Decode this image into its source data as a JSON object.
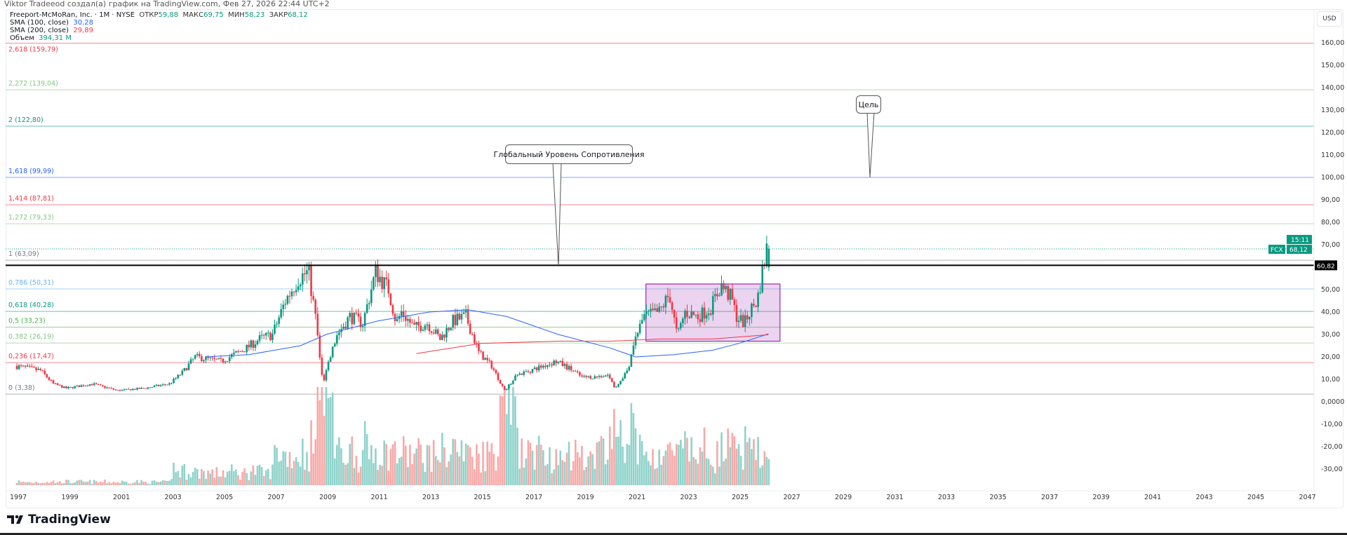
{
  "attribution": "Viktor Tradeeod создал(а) график на TradingView.com, Фев 27, 2026 22:44 UTC+2",
  "legend": {
    "symbol": "Freeport-McMoRan, Inc. · 1M · NYSE",
    "open_label": "ОТКР",
    "open": "59,88",
    "high_label": "МАКС",
    "high": "69,75",
    "low_label": "МИН",
    "low": "58,23",
    "close_label": "ЗАКР",
    "close": "68,12",
    "sma100_label": "SMA (100, close)",
    "sma100": "30,28",
    "sma200_label": "SMA (200, close)",
    "sma200": "29,89",
    "volume_label": "Объем",
    "volume": "394,31 M"
  },
  "currency": "USD",
  "logo_text": "TradingView",
  "callouts": {
    "resistance": "Глобальный Уровень Сопротивления",
    "target": "Цель"
  },
  "price_tag": {
    "ticker": "FCX",
    "price": "68,12",
    "countdown": "15:11",
    "level": "60,82"
  },
  "colors": {
    "up": "#089981",
    "down": "#f23645",
    "up_vol": "#8fd3cb",
    "down_vol": "#f7a9a7",
    "sma100": "#2962ff",
    "sma200": "#f23645",
    "box": "#9c27b0"
  },
  "chart_data": {
    "type": "candlestick",
    "title": "Freeport-McMoRan, Inc. · 1M · NYSE",
    "x_ticks": [
      "1997",
      "1999",
      "2001",
      "2003",
      "2005",
      "2007",
      "2009",
      "2011",
      "2013",
      "2015",
      "2017",
      "2019",
      "2021",
      "2023",
      "2025",
      "2027",
      "2029",
      "2031",
      "2033",
      "2035",
      "2037",
      "2039",
      "2041",
      "2043",
      "2045",
      "2047"
    ],
    "y_ticks": [
      {
        "v": 160,
        "label": "160,00"
      },
      {
        "v": 150,
        "label": "150,00"
      },
      {
        "v": 140,
        "label": "140,00"
      },
      {
        "v": 130,
        "label": "130,00"
      },
      {
        "v": 120,
        "label": "120,00"
      },
      {
        "v": 110,
        "label": "110,00"
      },
      {
        "v": 100,
        "label": "100,00"
      },
      {
        "v": 90,
        "label": "90,00"
      },
      {
        "v": 80,
        "label": "80,00"
      },
      {
        "v": 70,
        "label": "70,00"
      },
      {
        "v": 50,
        "label": "50,00"
      },
      {
        "v": 40,
        "label": "40,00"
      },
      {
        "v": 30,
        "label": "30,00"
      },
      {
        "v": 20,
        "label": "20,00"
      },
      {
        "v": 10,
        "label": "10,00"
      },
      {
        "v": 0,
        "label": "0,0000"
      },
      {
        "v": -10,
        "label": "-10,00"
      },
      {
        "v": -20,
        "label": "-20,00"
      },
      {
        "v": -30,
        "label": "-30,00"
      }
    ],
    "x_range": [
      1997,
      2047.2
    ],
    "y_range": [
      -38,
      178
    ],
    "fib_levels": [
      {
        "label": "2,618 (159,79)",
        "value": 159.79,
        "color": "#f23645"
      },
      {
        "label": "2,272 (139,04)",
        "value": 139.04,
        "color": "#81c784"
      },
      {
        "label": "2 (122,80)",
        "value": 122.8,
        "color": "#089981"
      },
      {
        "label": "1,618 (99,99)",
        "value": 99.99,
        "color": "#2962ff"
      },
      {
        "label": "1,414 (87,81)",
        "value": 87.81,
        "color": "#f23645"
      },
      {
        "label": "1,272 (79,33)",
        "value": 79.33,
        "color": "#81c784"
      },
      {
        "label": "1 (63,09)",
        "value": 63.09,
        "color": "#787b86"
      },
      {
        "label": "0,786 (50,31)",
        "value": 50.31,
        "color": "#64b5f6"
      },
      {
        "label": "0,618 (40,28)",
        "value": 40.28,
        "color": "#089981"
      },
      {
        "label": "0,5 (33,23)",
        "value": 33.23,
        "color": "#4caf50"
      },
      {
        "label": "0,382 (26,19)",
        "value": 26.19,
        "color": "#81c784"
      },
      {
        "label": "0,236 (17,47)",
        "value": 17.47,
        "color": "#f23645"
      },
      {
        "label": "0 (3,38)",
        "value": 3.38,
        "color": "#787b86"
      }
    ],
    "resistance_level": 60.82,
    "last_price": 68.12,
    "range_box": {
      "from": 2021.4,
      "to": 2026.6,
      "low": 27,
      "high": 52.5
    },
    "price_path": [
      [
        1997,
        16
      ],
      [
        1998,
        14
      ],
      [
        1998.5,
        8
      ],
      [
        1999,
        6
      ],
      [
        2000,
        8
      ],
      [
        2001,
        5
      ],
      [
        2002,
        6
      ],
      [
        2003,
        8
      ],
      [
        2003.5,
        13
      ],
      [
        2004,
        20
      ],
      [
        2005,
        18
      ],
      [
        2006,
        24
      ],
      [
        2006.5,
        28
      ],
      [
        2007,
        30
      ],
      [
        2007.5,
        45
      ],
      [
        2008,
        55
      ],
      [
        2008.4,
        58
      ],
      [
        2008.7,
        35
      ],
      [
        2008.9,
        12
      ],
      [
        2009,
        10
      ],
      [
        2009.5,
        30
      ],
      [
        2010,
        38
      ],
      [
        2010.5,
        35
      ],
      [
        2011,
        58
      ],
      [
        2011.5,
        50
      ],
      [
        2011.8,
        35
      ],
      [
        2012,
        40
      ],
      [
        2012.5,
        33
      ],
      [
        2013,
        35
      ],
      [
        2013.5,
        28
      ],
      [
        2014,
        36
      ],
      [
        2014.5,
        38
      ],
      [
        2015,
        22
      ],
      [
        2015.5,
        16
      ],
      [
        2016,
        5
      ],
      [
        2016.5,
        12
      ],
      [
        2017,
        14
      ],
      [
        2018,
        18
      ],
      [
        2018.5,
        15
      ],
      [
        2019,
        11
      ],
      [
        2019.5,
        11
      ],
      [
        2020,
        12
      ],
      [
        2020.3,
        6
      ],
      [
        2020.8,
        15
      ],
      [
        2021,
        26
      ],
      [
        2021.4,
        38
      ],
      [
        2022,
        40
      ],
      [
        2022.4,
        48
      ],
      [
        2022.7,
        29
      ],
      [
        2023,
        40
      ],
      [
        2023.5,
        38
      ],
      [
        2024,
        42
      ],
      [
        2024.4,
        52
      ],
      [
        2024.8,
        46
      ],
      [
        2025,
        38
      ],
      [
        2025.3,
        35
      ],
      [
        2025.6,
        42
      ],
      [
        2025.8,
        45
      ],
      [
        2026,
        58
      ],
      [
        2026.15,
        68.12
      ]
    ],
    "sma100": [
      [
        2004.3,
        20
      ],
      [
        2006,
        21
      ],
      [
        2008,
        25
      ],
      [
        2009,
        30
      ],
      [
        2011,
        36
      ],
      [
        2013,
        40
      ],
      [
        2014.5,
        41
      ],
      [
        2016,
        38
      ],
      [
        2018,
        30
      ],
      [
        2020,
        24
      ],
      [
        2021,
        20
      ],
      [
        2022.5,
        21
      ],
      [
        2024,
        23
      ],
      [
        2025,
        26
      ],
      [
        2026.15,
        30.28
      ]
    ],
    "sma200": [
      [
        2012.5,
        21.5
      ],
      [
        2015,
        26
      ],
      [
        2018,
        27
      ],
      [
        2020,
        27
      ],
      [
        2022,
        28
      ],
      [
        2024,
        28
      ],
      [
        2026.15,
        29.89
      ]
    ]
  }
}
